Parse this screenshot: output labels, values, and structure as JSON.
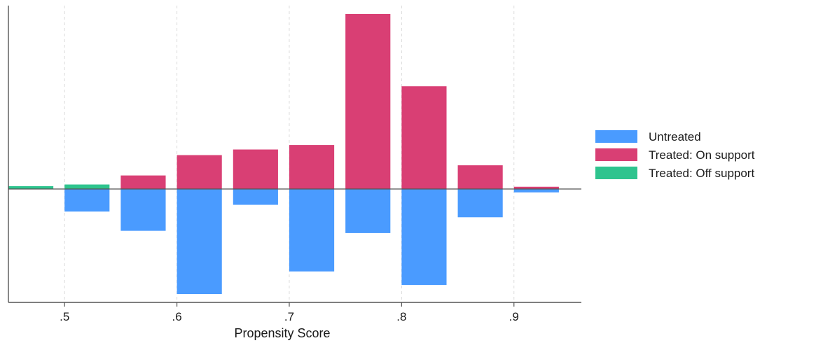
{
  "chart_data": {
    "type": "bar",
    "xlabel": "Propensity Score",
    "ylabel": "",
    "x_ticks": [
      0.5,
      0.6,
      0.7,
      0.8,
      0.9
    ],
    "x_tick_labels": [
      ".5",
      ".6",
      ".7",
      ".8",
      ".9"
    ],
    "xlim": [
      0.45,
      0.96
    ],
    "ylim": [
      -1.03,
      1.6
    ],
    "grid": "vertical dashed at x ticks",
    "legend_position": "right",
    "bin_centers": [
      0.47,
      0.52,
      0.57,
      0.62,
      0.67,
      0.72,
      0.77,
      0.82,
      0.87,
      0.92
    ],
    "series": [
      {
        "name": "Untreated",
        "color": "#4a9bff",
        "values": [
          0,
          -0.2,
          -0.37,
          -0.93,
          -0.14,
          -0.73,
          -0.39,
          -0.85,
          -0.25,
          -0.03
        ]
      },
      {
        "name": "Treated: On support",
        "color": "#d93f74",
        "values": [
          0,
          0,
          0.12,
          0.3,
          0.35,
          0.39,
          1.55,
          0.91,
          0.21,
          0.02
        ]
      },
      {
        "name": "Treated: Off support",
        "color": "#2ec48e",
        "values": [
          0.025,
          0.04,
          0,
          0,
          0,
          0,
          0,
          0,
          0,
          0
        ]
      }
    ]
  }
}
